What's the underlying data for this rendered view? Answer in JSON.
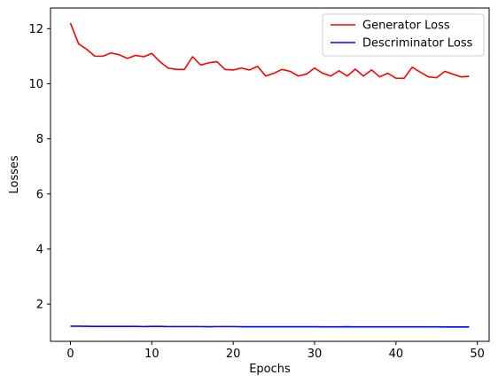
{
  "chart_data": {
    "type": "line",
    "title": "",
    "xlabel": "Epochs",
    "ylabel": "Losses",
    "xlim": [
      -2.45,
      51.45
    ],
    "ylim": [
      0.65,
      12.75
    ],
    "xticks": [
      0,
      10,
      20,
      30,
      40,
      50
    ],
    "yticks": [
      2,
      4,
      6,
      8,
      10,
      12
    ],
    "grid": false,
    "legend_position": "top-right",
    "x": [
      0,
      1,
      2,
      3,
      4,
      5,
      6,
      7,
      8,
      9,
      10,
      11,
      12,
      13,
      14,
      15,
      16,
      17,
      18,
      19,
      20,
      21,
      22,
      23,
      24,
      25,
      26,
      27,
      28,
      29,
      30,
      31,
      32,
      33,
      34,
      35,
      36,
      37,
      38,
      39,
      40,
      41,
      42,
      43,
      44,
      45,
      46,
      47,
      48,
      49
    ],
    "series": [
      {
        "name": "Generator Loss",
        "color": "#ff0000",
        "values": [
          12.2,
          11.45,
          11.25,
          11.0,
          11.0,
          11.12,
          11.05,
          10.92,
          11.03,
          10.98,
          11.1,
          10.8,
          10.57,
          10.52,
          10.52,
          10.98,
          10.68,
          10.76,
          10.8,
          10.52,
          10.5,
          10.57,
          10.5,
          10.63,
          10.28,
          10.38,
          10.52,
          10.45,
          10.28,
          10.35,
          10.57,
          10.38,
          10.28,
          10.47,
          10.28,
          10.53,
          10.28,
          10.5,
          10.25,
          10.38,
          10.2,
          10.2,
          10.6,
          10.42,
          10.25,
          10.22,
          10.45,
          10.35,
          10.25,
          10.27
        ]
      },
      {
        "name": "Descriminator Loss",
        "color": "#0000ff",
        "values": [
          1.2,
          1.2,
          1.195,
          1.19,
          1.19,
          1.19,
          1.19,
          1.19,
          1.19,
          1.185,
          1.19,
          1.19,
          1.185,
          1.185,
          1.185,
          1.185,
          1.185,
          1.18,
          1.185,
          1.185,
          1.185,
          1.18,
          1.18,
          1.18,
          1.18,
          1.18,
          1.18,
          1.18,
          1.18,
          1.18,
          1.18,
          1.175,
          1.175,
          1.175,
          1.18,
          1.175,
          1.175,
          1.175,
          1.175,
          1.175,
          1.175,
          1.175,
          1.175,
          1.175,
          1.175,
          1.175,
          1.17,
          1.17,
          1.17,
          1.17
        ]
      }
    ]
  }
}
